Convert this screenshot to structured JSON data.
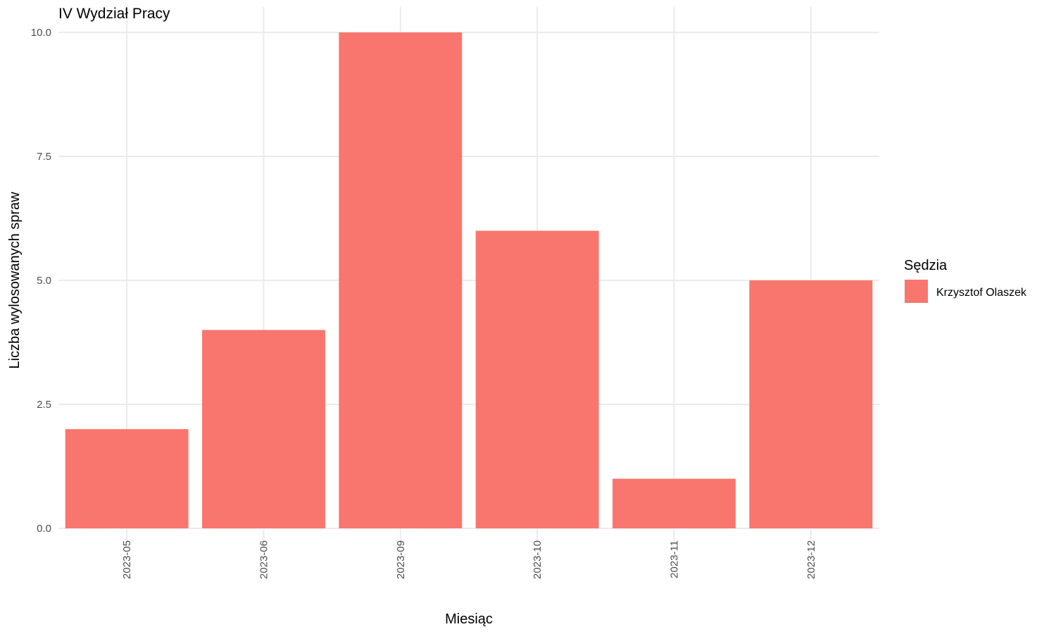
{
  "chart_data": {
    "type": "bar",
    "title": "IV Wydział Pracy",
    "xlabel": "Miesiąc",
    "ylabel": "Liczba wylosowanych spraw",
    "categories": [
      "2023-05",
      "2023-06",
      "2023-09",
      "2023-10",
      "2023-11",
      "2023-12"
    ],
    "series": [
      {
        "name": "Krzysztof Olaszek",
        "values": [
          2,
          4,
          10,
          6,
          1,
          5
        ],
        "color": "#F8766D"
      }
    ],
    "ylim": [
      0,
      10
    ],
    "yticks": [
      0,
      2.5,
      5,
      7.5,
      10
    ],
    "ytick_labels": [
      "0.0",
      "2.5",
      "5.0",
      "7.5",
      "10.0"
    ],
    "grid": true,
    "legend": {
      "title": "Sędzia",
      "position": "right"
    },
    "x_tick_rotation": "vertical"
  }
}
